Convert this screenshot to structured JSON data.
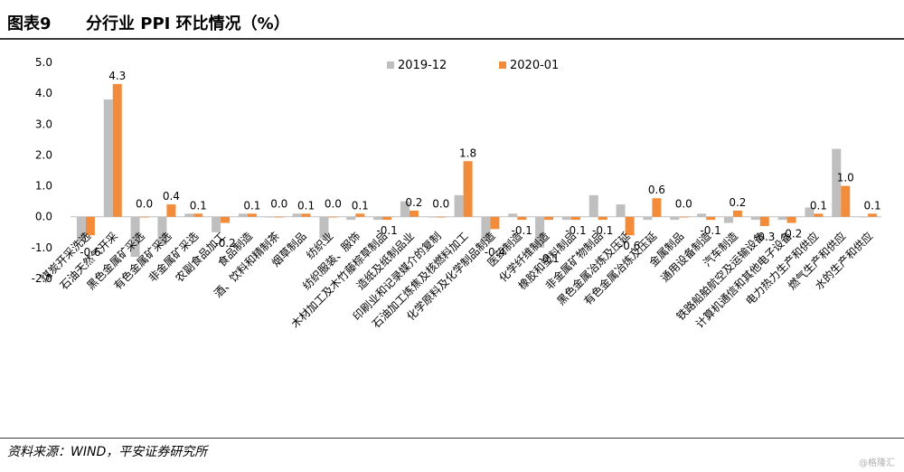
{
  "header": {
    "figure_label": "图表9",
    "title": "分行业 PPI 环比情况（%）"
  },
  "source": "资料来源：WIND，平安证券研究所",
  "watermark": "@格隆汇",
  "colors": {
    "series1": "#bfbfbf",
    "series2": "#f28c3a"
  },
  "chart_data": {
    "type": "bar",
    "title": "分行业 PPI 环比情况（%）",
    "ylim": [
      -2.0,
      5.0
    ],
    "yticks": [
      "5.0",
      "4.0",
      "3.0",
      "2.0",
      "1.0",
      "0.0",
      "-1.0",
      "-2.0"
    ],
    "grid": false,
    "legend_position": "top-center",
    "categories": [
      "煤炭开采洗选",
      "石油天然气开采",
      "黑色金属矿采选",
      "有色金属矿采选",
      "非金属矿采选",
      "农副食品加工",
      "食品制造",
      "酒、饮料和精制茶",
      "烟草制品",
      "纺织业",
      "纺织服装、服饰",
      "木材加工及木竹藤棕草制品",
      "造纸及纸制品业",
      "印刷业和记录媒介的复制",
      "石油加工炼焦及核燃料加工",
      "化学原料及化学制品制造",
      "医药制造",
      "化学纤维制造",
      "橡胶和塑料制品",
      "非金属矿物制品",
      "黑色金属冶炼及压延",
      "有色金属冶炼及压延",
      "金属制品",
      "通用设备制造",
      "汽车制造",
      "铁路船舶航空及运输设备",
      "计算机通信和其他电子设备",
      "电力热力生产和供应",
      "燃气生产和供应",
      "水的生产和供应"
    ],
    "series": [
      {
        "name": "2019-12",
        "values": [
          -0.8,
          3.8,
          -1.3,
          -0.9,
          0.1,
          -0.5,
          0.1,
          0.0,
          0.1,
          -0.7,
          -0.1,
          -0.1,
          0.5,
          0.0,
          0.7,
          -0.8,
          0.1,
          -1.0,
          -0.1,
          0.7,
          0.4,
          -0.1,
          -0.1,
          0.1,
          -0.2,
          -0.1,
          -0.1,
          0.3,
          2.2,
          0.0
        ]
      },
      {
        "name": "2020-01",
        "values": [
          -0.6,
          4.3,
          0.0,
          0.4,
          0.1,
          -0.2,
          0.1,
          0.0,
          0.1,
          0.0,
          0.1,
          -0.1,
          0.2,
          0.0,
          1.8,
          -0.4,
          -0.1,
          -0.1,
          -0.1,
          -0.1,
          -0.6,
          0.6,
          0.0,
          -0.1,
          0.2,
          -0.3,
          -0.2,
          0.1,
          1.0,
          0.1
        ]
      }
    ],
    "data_labels": [
      "-0.6",
      "4.3",
      "0.0",
      "0.4",
      "0.1",
      "-0.2",
      "0.1",
      "0.0",
      "0.1",
      "0.0",
      "0.1",
      "-0.1",
      "0.2",
      "0.0",
      "1.8",
      "-0.4",
      "-0.1",
      "-0.1",
      "-0.1",
      "-0.1",
      "-0.6",
      "0.6",
      "0.0",
      "-0.1",
      "0.2",
      "-0.3",
      "-0.2",
      "0.1",
      "1.0",
      "0.1"
    ]
  }
}
